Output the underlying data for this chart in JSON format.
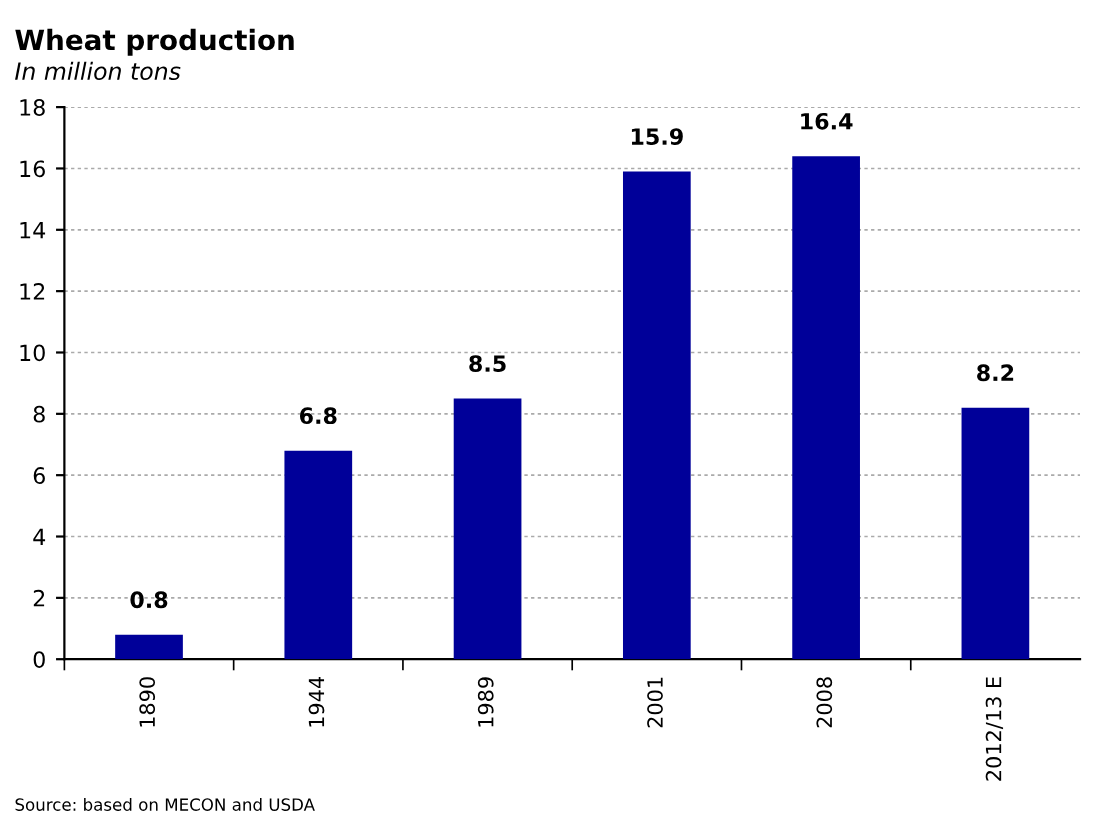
{
  "chart_data": {
    "type": "bar",
    "title": "Wheat production",
    "subtitle": "In million tons",
    "categories": [
      "1890",
      "1944",
      "1989",
      "2001",
      "2008",
      "2012/13 E"
    ],
    "values": [
      0.8,
      6.8,
      8.5,
      15.9,
      16.4,
      8.2
    ],
    "color": "#000099",
    "ylim": [
      0,
      18
    ],
    "yticks": [
      0,
      2,
      4,
      6,
      8,
      10,
      12,
      14,
      16,
      18
    ],
    "grid": "y",
    "data_labels": true,
    "annotations": [
      "Source: based on MECON and USDA"
    ]
  }
}
